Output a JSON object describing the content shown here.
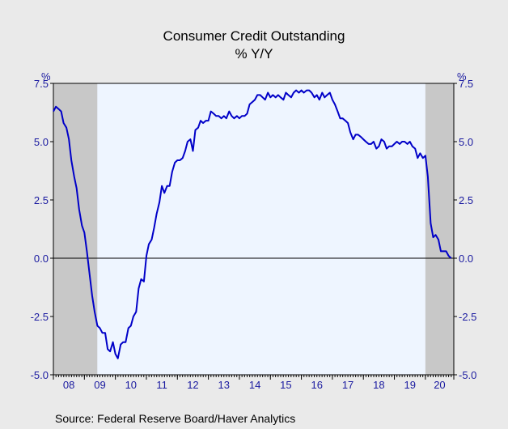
{
  "chart_data": {
    "type": "line",
    "title": "Consumer Credit Outstanding",
    "subtitle": "% Y/Y",
    "ylabel_left": "%",
    "ylabel_right": "%",
    "ylim": [
      -5.0,
      7.5
    ],
    "yticks": [
      "7.5",
      "5.0",
      "2.5",
      "0.0",
      "-2.5",
      "-5.0"
    ],
    "ytick_values": [
      7.5,
      5.0,
      2.5,
      0.0,
      -2.5,
      -5.0
    ],
    "xlim": [
      2008.0,
      2020.9167
    ],
    "xticks": [
      "08",
      "09",
      "10",
      "11",
      "12",
      "13",
      "14",
      "15",
      "16",
      "17",
      "18",
      "19",
      "20"
    ],
    "recessions": [
      {
        "start": 2008.0,
        "end": 2009.4167
      },
      {
        "start": 2020.0,
        "end": 2020.9167
      }
    ],
    "plot_background": "#eef5ff",
    "recession_color": "#c8c8c8",
    "line_color": "#0000c8",
    "zero_line": true,
    "series": [
      {
        "x": [
          2008.0,
          2008.08,
          2008.17,
          2008.25,
          2008.33,
          2008.42,
          2008.5,
          2008.58,
          2008.67,
          2008.75,
          2008.83,
          2008.92,
          2009.0,
          2009.08,
          2009.17,
          2009.25,
          2009.33,
          2009.42,
          2009.5,
          2009.58,
          2009.67,
          2009.75,
          2009.83,
          2009.92,
          2010.0,
          2010.08,
          2010.17,
          2010.25,
          2010.33,
          2010.42,
          2010.5,
          2010.58,
          2010.67,
          2010.75,
          2010.83,
          2010.92,
          2011.0,
          2011.08,
          2011.17,
          2011.25,
          2011.33,
          2011.42,
          2011.5,
          2011.58,
          2011.67,
          2011.75,
          2011.83,
          2011.92,
          2012.0,
          2012.08,
          2012.17,
          2012.25,
          2012.33,
          2012.42,
          2012.5,
          2012.58,
          2012.67,
          2012.75,
          2012.83,
          2012.92,
          2013.0,
          2013.08,
          2013.17,
          2013.25,
          2013.33,
          2013.42,
          2013.5,
          2013.58,
          2013.67,
          2013.75,
          2013.83,
          2013.92,
          2014.0,
          2014.08,
          2014.17,
          2014.25,
          2014.33,
          2014.42,
          2014.5,
          2014.58,
          2014.67,
          2014.75,
          2014.83,
          2014.92,
          2015.0,
          2015.08,
          2015.17,
          2015.25,
          2015.33,
          2015.42,
          2015.5,
          2015.58,
          2015.67,
          2015.75,
          2015.83,
          2015.92,
          2016.0,
          2016.08,
          2016.17,
          2016.25,
          2016.33,
          2016.42,
          2016.5,
          2016.58,
          2016.67,
          2016.75,
          2016.83,
          2016.92,
          2017.0,
          2017.08,
          2017.17,
          2017.25,
          2017.33,
          2017.42,
          2017.5,
          2017.58,
          2017.67,
          2017.75,
          2017.83,
          2017.92,
          2018.0,
          2018.08,
          2018.17,
          2018.25,
          2018.33,
          2018.42,
          2018.5,
          2018.58,
          2018.67,
          2018.75,
          2018.83,
          2018.92,
          2019.0,
          2019.08,
          2019.17,
          2019.25,
          2019.33,
          2019.42,
          2019.5,
          2019.58,
          2019.67,
          2019.75,
          2019.83,
          2019.92,
          2020.0,
          2020.08,
          2020.17,
          2020.25,
          2020.33,
          2020.42,
          2020.5,
          2020.58,
          2020.67,
          2020.75,
          2020.83
        ],
        "y": [
          6.3,
          6.5,
          6.4,
          6.3,
          5.8,
          5.6,
          5.1,
          4.2,
          3.5,
          3.0,
          2.1,
          1.4,
          1.1,
          0.3,
          -0.7,
          -1.6,
          -2.3,
          -2.9,
          -3.0,
          -3.2,
          -3.2,
          -3.9,
          -4.0,
          -3.6,
          -4.1,
          -4.3,
          -3.7,
          -3.6,
          -3.6,
          -3.0,
          -2.9,
          -2.5,
          -2.3,
          -1.3,
          -0.9,
          -1.0,
          0.1,
          0.6,
          0.8,
          1.3,
          1.9,
          2.4,
          3.1,
          2.8,
          3.1,
          3.1,
          3.7,
          4.1,
          4.2,
          4.2,
          4.3,
          4.6,
          5.0,
          5.1,
          4.6,
          5.5,
          5.6,
          5.9,
          5.8,
          5.9,
          5.9,
          6.3,
          6.2,
          6.1,
          6.1,
          6.0,
          6.1,
          6.0,
          6.3,
          6.1,
          6.0,
          6.1,
          6.0,
          6.1,
          6.1,
          6.2,
          6.6,
          6.7,
          6.8,
          7.0,
          7.0,
          6.9,
          6.8,
          7.1,
          6.9,
          7.0,
          6.9,
          7.0,
          6.9,
          6.8,
          7.1,
          7.0,
          6.9,
          7.1,
          7.2,
          7.1,
          7.2,
          7.1,
          7.2,
          7.2,
          7.1,
          6.9,
          7.0,
          6.8,
          7.1,
          6.9,
          7.0,
          7.1,
          6.8,
          6.6,
          6.3,
          6.0,
          6.0,
          5.9,
          5.8,
          5.4,
          5.1,
          5.3,
          5.3,
          5.2,
          5.1,
          5.0,
          4.9,
          4.9,
          5.0,
          4.7,
          4.8,
          5.1,
          5.0,
          4.7,
          4.8,
          4.8,
          4.9,
          5.0,
          4.9,
          5.0,
          5.0,
          4.9,
          5.0,
          4.8,
          4.7,
          4.3,
          4.5,
          4.3,
          4.4,
          3.5,
          1.5,
          0.9,
          1.0,
          0.8,
          0.3,
          0.3,
          0.3,
          0.1,
          0.0
        ]
      }
    ]
  },
  "source": "Source:  Federal Reserve Board/Haver Analytics"
}
